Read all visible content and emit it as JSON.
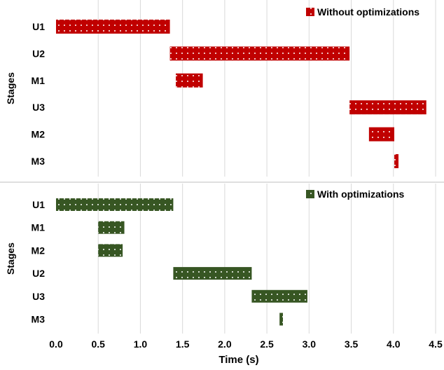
{
  "chart_data": [
    {
      "type": "gantt",
      "ylabel": "Stages",
      "legend": {
        "label": "Without optimizations",
        "position": "top-right"
      },
      "color": "#c00000",
      "pattern": "dotted",
      "grid": true,
      "xlim": [
        0,
        4.5
      ],
      "tasks": [
        {
          "stage": "U1",
          "start": 0.0,
          "end": 1.35
        },
        {
          "stage": "U2",
          "start": 1.35,
          "end": 3.48
        },
        {
          "stage": "M1",
          "start": 1.42,
          "end": 1.74
        },
        {
          "stage": "U3",
          "start": 3.48,
          "end": 4.39
        },
        {
          "stage": "M2",
          "start": 3.71,
          "end": 4.01
        },
        {
          "stage": "M3",
          "start": 4.01,
          "end": 4.06
        }
      ]
    },
    {
      "type": "gantt",
      "ylabel": "Stages",
      "legend": {
        "label": "With optimizations",
        "position": "top-right"
      },
      "color": "#375623",
      "pattern": "dotted",
      "grid": true,
      "xlim": [
        0,
        4.5
      ],
      "xlabel": "Time (s)",
      "xticks": [
        "0.0",
        "0.5",
        "1.0",
        "1.5",
        "2.0",
        "2.5",
        "3.0",
        "3.5",
        "4.0",
        "4.5"
      ],
      "tasks": [
        {
          "stage": "U1",
          "start": 0.0,
          "end": 1.39
        },
        {
          "stage": "M1",
          "start": 0.5,
          "end": 0.81
        },
        {
          "stage": "M2",
          "start": 0.5,
          "end": 0.79
        },
        {
          "stage": "U2",
          "start": 1.39,
          "end": 2.32
        },
        {
          "stage": "U3",
          "start": 2.32,
          "end": 2.98
        },
        {
          "stage": "M3",
          "start": 2.65,
          "end": 2.69
        }
      ]
    }
  ]
}
